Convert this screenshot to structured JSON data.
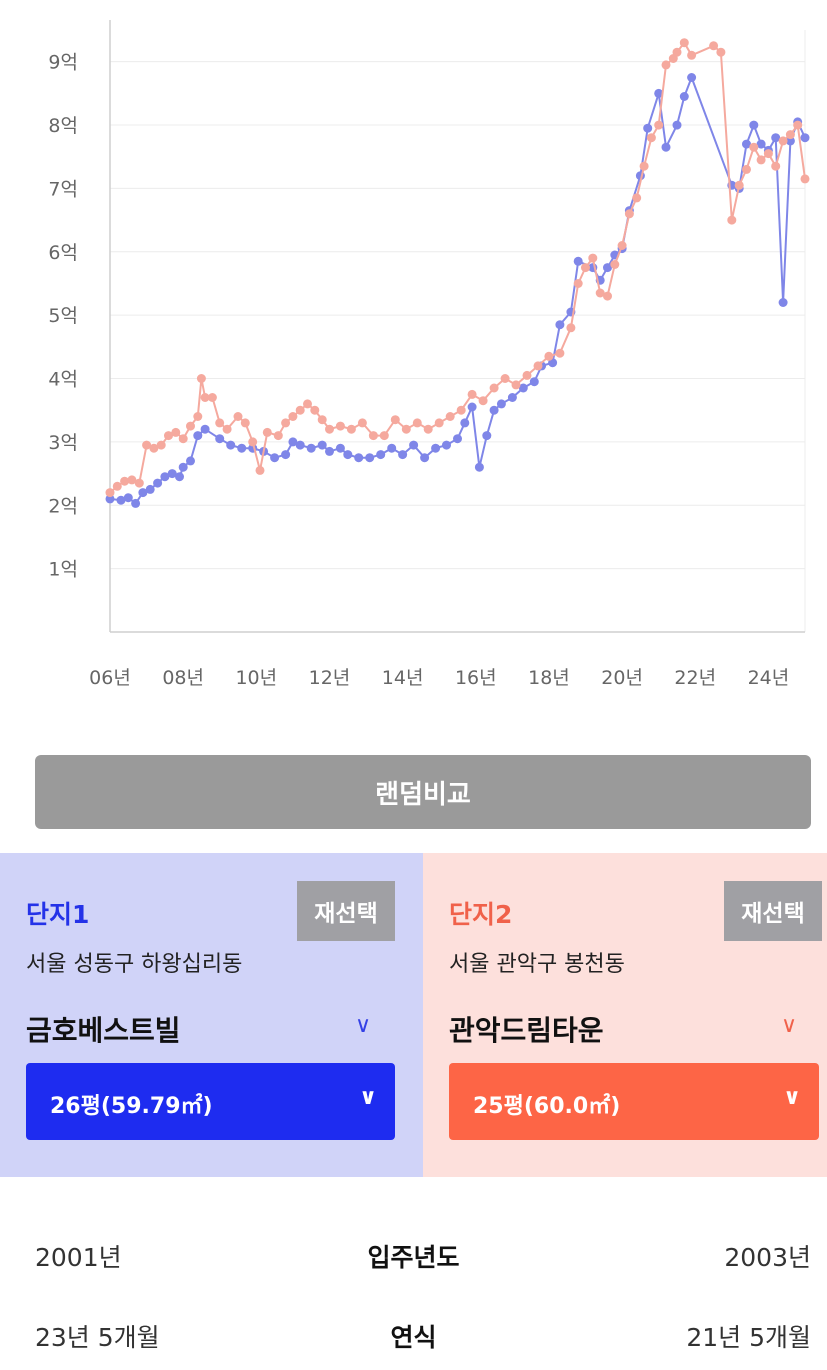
{
  "chart_data": {
    "type": "line",
    "xlim": [
      2006,
      2025
    ],
    "ylim": [
      0,
      9.5
    ],
    "yticks": [
      {
        "value": 1,
        "label": "1억"
      },
      {
        "value": 2,
        "label": "2억"
      },
      {
        "value": 3,
        "label": "3억"
      },
      {
        "value": 4,
        "label": "4억"
      },
      {
        "value": 5,
        "label": "5억"
      },
      {
        "value": 6,
        "label": "6억"
      },
      {
        "value": 7,
        "label": "7억"
      },
      {
        "value": 8,
        "label": "8억"
      },
      {
        "value": 9,
        "label": "9억"
      }
    ],
    "xticks": [
      {
        "value": 2006,
        "label": "06년"
      },
      {
        "value": 2008,
        "label": "08년"
      },
      {
        "value": 2010,
        "label": "10년"
      },
      {
        "value": 2012,
        "label": "12년"
      },
      {
        "value": 2014,
        "label": "14년"
      },
      {
        "value": 2016,
        "label": "16년"
      },
      {
        "value": 2018,
        "label": "18년"
      },
      {
        "value": 2020,
        "label": "20년"
      },
      {
        "value": 2022,
        "label": "22년"
      },
      {
        "value": 2024,
        "label": "24년"
      }
    ],
    "grid": true,
    "legend": "none",
    "series": [
      {
        "color": "#7f86e8",
        "points": [
          [
            2006.0,
            2.1
          ],
          [
            2006.3,
            2.08
          ],
          [
            2006.5,
            2.12
          ],
          [
            2006.7,
            2.03
          ],
          [
            2006.9,
            2.2
          ],
          [
            2007.1,
            2.25
          ],
          [
            2007.3,
            2.35
          ],
          [
            2007.5,
            2.45
          ],
          [
            2007.7,
            2.5
          ],
          [
            2007.9,
            2.45
          ],
          [
            2008.0,
            2.6
          ],
          [
            2008.2,
            2.7
          ],
          [
            2008.4,
            3.1
          ],
          [
            2008.6,
            3.2
          ],
          [
            2009.0,
            3.05
          ],
          [
            2009.3,
            2.95
          ],
          [
            2009.6,
            2.9
          ],
          [
            2009.9,
            2.9
          ],
          [
            2010.2,
            2.85
          ],
          [
            2010.5,
            2.75
          ],
          [
            2010.8,
            2.8
          ],
          [
            2011.0,
            3.0
          ],
          [
            2011.2,
            2.95
          ],
          [
            2011.5,
            2.9
          ],
          [
            2011.8,
            2.95
          ],
          [
            2012.0,
            2.85
          ],
          [
            2012.3,
            2.9
          ],
          [
            2012.5,
            2.8
          ],
          [
            2012.8,
            2.75
          ],
          [
            2013.1,
            2.75
          ],
          [
            2013.4,
            2.8
          ],
          [
            2013.7,
            2.9
          ],
          [
            2014.0,
            2.8
          ],
          [
            2014.3,
            2.95
          ],
          [
            2014.6,
            2.75
          ],
          [
            2014.9,
            2.9
          ],
          [
            2015.2,
            2.95
          ],
          [
            2015.5,
            3.05
          ],
          [
            2015.7,
            3.3
          ],
          [
            2015.9,
            3.55
          ],
          [
            2016.1,
            2.6
          ],
          [
            2016.3,
            3.1
          ],
          [
            2016.5,
            3.5
          ],
          [
            2016.7,
            3.6
          ],
          [
            2017.0,
            3.7
          ],
          [
            2017.3,
            3.85
          ],
          [
            2017.6,
            3.95
          ],
          [
            2017.8,
            4.2
          ],
          [
            2018.1,
            4.25
          ],
          [
            2018.3,
            4.85
          ],
          [
            2018.6,
            5.05
          ],
          [
            2018.8,
            5.85
          ],
          [
            2019.2,
            5.75
          ],
          [
            2019.4,
            5.55
          ],
          [
            2019.6,
            5.75
          ],
          [
            2019.8,
            5.95
          ],
          [
            2020.0,
            6.05
          ],
          [
            2020.2,
            6.65
          ],
          [
            2020.5,
            7.2
          ],
          [
            2020.7,
            7.95
          ],
          [
            2021.0,
            8.5
          ],
          [
            2021.2,
            7.65
          ],
          [
            2021.5,
            8.0
          ],
          [
            2021.7,
            8.45
          ],
          [
            2021.9,
            8.75
          ],
          [
            2023.0,
            7.05
          ],
          [
            2023.2,
            7.0
          ],
          [
            2023.4,
            7.7
          ],
          [
            2023.6,
            8.0
          ],
          [
            2023.8,
            7.7
          ],
          [
            2024.0,
            7.6
          ],
          [
            2024.2,
            7.8
          ],
          [
            2024.4,
            5.2
          ],
          [
            2024.6,
            7.75
          ],
          [
            2024.8,
            8.05
          ],
          [
            2025.0,
            7.8
          ]
        ]
      },
      {
        "color": "#f5a99e",
        "points": [
          [
            2006.0,
            2.2
          ],
          [
            2006.2,
            2.3
          ],
          [
            2006.4,
            2.38
          ],
          [
            2006.6,
            2.4
          ],
          [
            2006.8,
            2.35
          ],
          [
            2007.0,
            2.95
          ],
          [
            2007.2,
            2.9
          ],
          [
            2007.4,
            2.95
          ],
          [
            2007.6,
            3.1
          ],
          [
            2007.8,
            3.15
          ],
          [
            2008.0,
            3.05
          ],
          [
            2008.2,
            3.25
          ],
          [
            2008.4,
            3.4
          ],
          [
            2008.5,
            4.0
          ],
          [
            2008.6,
            3.7
          ],
          [
            2008.8,
            3.7
          ],
          [
            2009.0,
            3.3
          ],
          [
            2009.2,
            3.2
          ],
          [
            2009.5,
            3.4
          ],
          [
            2009.7,
            3.3
          ],
          [
            2009.9,
            3.0
          ],
          [
            2010.1,
            2.55
          ],
          [
            2010.3,
            3.15
          ],
          [
            2010.6,
            3.1
          ],
          [
            2010.8,
            3.3
          ],
          [
            2011.0,
            3.4
          ],
          [
            2011.2,
            3.5
          ],
          [
            2011.4,
            3.6
          ],
          [
            2011.6,
            3.5
          ],
          [
            2011.8,
            3.35
          ],
          [
            2012.0,
            3.2
          ],
          [
            2012.3,
            3.25
          ],
          [
            2012.6,
            3.2
          ],
          [
            2012.9,
            3.3
          ],
          [
            2013.2,
            3.1
          ],
          [
            2013.5,
            3.1
          ],
          [
            2013.8,
            3.35
          ],
          [
            2014.1,
            3.2
          ],
          [
            2014.4,
            3.3
          ],
          [
            2014.7,
            3.2
          ],
          [
            2015.0,
            3.3
          ],
          [
            2015.3,
            3.4
          ],
          [
            2015.6,
            3.5
          ],
          [
            2015.9,
            3.75
          ],
          [
            2016.2,
            3.65
          ],
          [
            2016.5,
            3.85
          ],
          [
            2016.8,
            4.0
          ],
          [
            2017.1,
            3.9
          ],
          [
            2017.4,
            4.05
          ],
          [
            2017.7,
            4.2
          ],
          [
            2018.0,
            4.35
          ],
          [
            2018.3,
            4.4
          ],
          [
            2018.6,
            4.8
          ],
          [
            2018.8,
            5.5
          ],
          [
            2019.0,
            5.75
          ],
          [
            2019.2,
            5.9
          ],
          [
            2019.4,
            5.35
          ],
          [
            2019.6,
            5.3
          ],
          [
            2019.8,
            5.8
          ],
          [
            2020.0,
            6.1
          ],
          [
            2020.2,
            6.6
          ],
          [
            2020.4,
            6.85
          ],
          [
            2020.6,
            7.35
          ],
          [
            2020.8,
            7.8
          ],
          [
            2021.0,
            8.0
          ],
          [
            2021.2,
            8.95
          ],
          [
            2021.4,
            9.05
          ],
          [
            2021.5,
            9.15
          ],
          [
            2021.7,
            9.3
          ],
          [
            2021.9,
            9.1
          ],
          [
            2022.5,
            9.25
          ],
          [
            2022.7,
            9.15
          ],
          [
            2023.0,
            6.5
          ],
          [
            2023.2,
            7.05
          ],
          [
            2023.4,
            7.3
          ],
          [
            2023.6,
            7.65
          ],
          [
            2023.8,
            7.45
          ],
          [
            2024.0,
            7.55
          ],
          [
            2024.2,
            7.35
          ],
          [
            2024.4,
            7.75
          ],
          [
            2024.6,
            7.85
          ],
          [
            2024.8,
            8.0
          ],
          [
            2025.0,
            7.15
          ]
        ]
      }
    ]
  },
  "random_button": "랜덤비교",
  "complex1": {
    "title": "단지1",
    "reselect": "재선택",
    "address": "서울 성동구 하왕십리동",
    "name": "금호베스트빌",
    "size": "26평(59.79㎡)",
    "chevron": "∨"
  },
  "complex2": {
    "title": "단지2",
    "reselect": "재선택",
    "address": "서울 관악구 봉천동",
    "name": "관악드림타운",
    "size": "25평(60.0㎡)",
    "chevron": "∨"
  },
  "info_rows": [
    {
      "left": "2001년",
      "label": "입주년도",
      "right": "2003년"
    },
    {
      "left": "23년 5개월",
      "label": "연식",
      "right": "21년 5개월"
    }
  ]
}
